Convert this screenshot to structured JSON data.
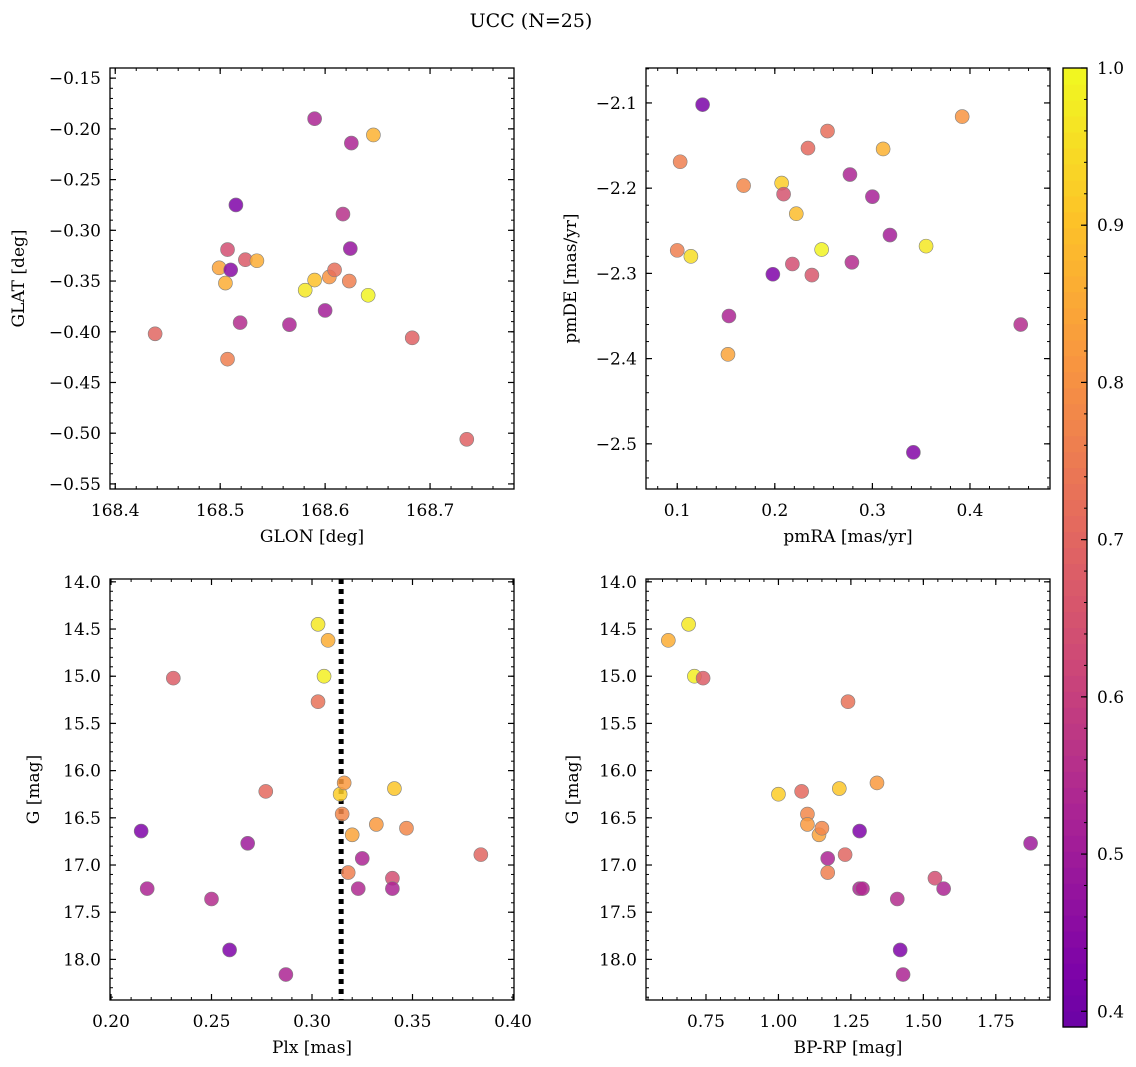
{
  "figure": {
    "title": "UCC (N=25)"
  },
  "colorbar": {
    "min": 0.39,
    "max": 1.0,
    "ticks": [
      0.4,
      0.5,
      0.6,
      0.7,
      0.8,
      0.9,
      1.0
    ],
    "tick_labels": [
      "0.4",
      "0.5",
      "0.6",
      "0.7",
      "0.8",
      "0.9",
      "1.0"
    ],
    "colormap": "plasma"
  },
  "chart_data": [
    {
      "type": "scatter",
      "xlabel": "GLON [deg]",
      "ylabel": "GLAT [deg]",
      "xlim": [
        168.395,
        168.78
      ],
      "ylim": [
        -0.555,
        -0.14
      ],
      "y_inverted": false,
      "xticks": [
        168.4,
        168.5,
        168.6,
        168.7
      ],
      "xtick_labels": [
        "168.4",
        "168.5",
        "168.6",
        "168.7"
      ],
      "yticks": [
        -0.55,
        -0.5,
        -0.45,
        -0.4,
        -0.35,
        -0.3,
        -0.25,
        -0.2,
        -0.15
      ],
      "ytick_labels": [
        "−0.55",
        "−0.50",
        "−0.45",
        "−0.40",
        "−0.35",
        "−0.30",
        "−0.25",
        "−0.20",
        "−0.15"
      ],
      "x": [
        168.438,
        168.499,
        168.505,
        168.507,
        168.507,
        168.51,
        168.515,
        168.519,
        168.524,
        168.535,
        168.566,
        168.581,
        168.59,
        168.59,
        168.6,
        168.604,
        168.609,
        168.617,
        168.623,
        168.624,
        168.625,
        168.641,
        168.646,
        168.683,
        168.735
      ],
      "y": [
        -0.402,
        -0.337,
        -0.352,
        -0.427,
        -0.319,
        -0.339,
        -0.275,
        -0.391,
        -0.329,
        -0.33,
        -0.393,
        -0.359,
        -0.349,
        -0.19,
        -0.379,
        -0.346,
        -0.339,
        -0.284,
        -0.35,
        -0.318,
        -0.214,
        -0.364,
        -0.206,
        -0.406,
        -0.506
      ],
      "c": [
        0.7,
        0.84,
        0.86,
        0.76,
        0.64,
        0.45,
        0.43,
        0.55,
        0.67,
        0.86,
        0.53,
        0.97,
        0.9,
        0.53,
        0.51,
        0.81,
        0.72,
        0.56,
        0.76,
        0.48,
        0.53,
        0.99,
        0.87,
        0.69,
        0.69
      ],
      "vline": null
    },
    {
      "type": "scatter",
      "xlabel": "pmRA [mas/yr]",
      "ylabel": "pmDE [mas/yr]",
      "xlim": [
        0.068,
        0.482
      ],
      "ylim": [
        -2.553,
        -2.059
      ],
      "y_inverted": false,
      "xticks": [
        0.1,
        0.2,
        0.3,
        0.4
      ],
      "xtick_labels": [
        "0.1",
        "0.2",
        "0.3",
        "0.4"
      ],
      "yticks": [
        -2.5,
        -2.4,
        -2.3,
        -2.2,
        -2.1
      ],
      "ytick_labels": [
        "−2.5",
        "−2.4",
        "−2.3",
        "−2.2",
        "−2.1"
      ],
      "x": [
        0.1,
        0.103,
        0.114,
        0.126,
        0.152,
        0.153,
        0.168,
        0.198,
        0.207,
        0.209,
        0.218,
        0.222,
        0.234,
        0.238,
        0.248,
        0.254,
        0.277,
        0.279,
        0.3,
        0.311,
        0.318,
        0.342,
        0.355,
        0.392,
        0.452
      ],
      "y": [
        -2.273,
        -2.169,
        -2.28,
        -2.102,
        -2.395,
        -2.35,
        -2.197,
        -2.301,
        -2.194,
        -2.207,
        -2.289,
        -2.23,
        -2.153,
        -2.302,
        -2.272,
        -2.133,
        -2.184,
        -2.287,
        -2.21,
        -2.154,
        -2.255,
        -2.51,
        -2.268,
        -2.116,
        -2.36
      ],
      "c": [
        0.76,
        0.76,
        0.95,
        0.42,
        0.84,
        0.53,
        0.78,
        0.43,
        0.92,
        0.65,
        0.64,
        0.89,
        0.71,
        0.66,
        0.99,
        0.72,
        0.53,
        0.55,
        0.52,
        0.87,
        0.51,
        0.44,
        0.97,
        0.81,
        0.55
      ],
      "vline": null
    },
    {
      "type": "scatter",
      "xlabel": "Plx [mas]",
      "ylabel": "G [mag]",
      "xlim": [
        0.1995,
        0.4005
      ],
      "ylim": [
        18.43,
        13.97
      ],
      "y_inverted": true,
      "xticks": [
        0.2,
        0.25,
        0.3,
        0.35,
        0.4
      ],
      "xtick_labels": [
        "0.20",
        "0.25",
        "0.30",
        "0.35",
        "0.40"
      ],
      "yticks": [
        14.0,
        14.5,
        15.0,
        15.5,
        16.0,
        16.5,
        17.0,
        17.5,
        18.0
      ],
      "ytick_labels": [
        "14.0",
        "14.5",
        "15.0",
        "15.5",
        "16.0",
        "16.5",
        "17.0",
        "17.5",
        "18.0"
      ],
      "x": [
        0.215,
        0.218,
        0.231,
        0.25,
        0.259,
        0.268,
        0.277,
        0.287,
        0.303,
        0.303,
        0.306,
        0.308,
        0.314,
        0.315,
        0.316,
        0.318,
        0.32,
        0.323,
        0.325,
        0.332,
        0.34,
        0.34,
        0.341,
        0.347,
        0.384
      ],
      "y": [
        16.64,
        17.25,
        15.02,
        17.36,
        17.9,
        16.77,
        16.22,
        18.16,
        14.45,
        15.27,
        15.0,
        14.62,
        16.25,
        16.46,
        16.13,
        17.08,
        16.68,
        17.25,
        16.93,
        16.57,
        17.14,
        17.25,
        16.19,
        16.61,
        16.89
      ],
      "c": [
        0.43,
        0.53,
        0.68,
        0.55,
        0.43,
        0.5,
        0.71,
        0.53,
        0.97,
        0.73,
        0.98,
        0.86,
        0.92,
        0.78,
        0.82,
        0.76,
        0.84,
        0.54,
        0.53,
        0.82,
        0.64,
        0.53,
        0.91,
        0.78,
        0.7
      ],
      "vline": 0.3145
    },
    {
      "type": "scatter",
      "xlabel": "BP-RP [mag]",
      "ylabel": "G [mag]",
      "xlim": [
        0.543,
        1.937
      ],
      "ylim": [
        18.43,
        13.97
      ],
      "y_inverted": true,
      "xticks": [
        0.75,
        1.0,
        1.25,
        1.5,
        1.75
      ],
      "xtick_labels": [
        "0.75",
        "1.00",
        "1.25",
        "1.50",
        "1.75"
      ],
      "yticks": [
        14.0,
        14.5,
        15.0,
        15.5,
        16.0,
        16.5,
        17.0,
        17.5,
        18.0
      ],
      "ytick_labels": [
        "14.0",
        "14.5",
        "15.0",
        "15.5",
        "16.0",
        "16.5",
        "17.0",
        "17.5",
        "18.0"
      ],
      "x": [
        0.62,
        0.69,
        0.71,
        0.74,
        1.0,
        1.08,
        1.1,
        1.1,
        1.14,
        1.15,
        1.17,
        1.17,
        1.21,
        1.23,
        1.24,
        1.28,
        1.28,
        1.29,
        1.34,
        1.41,
        1.42,
        1.43,
        1.54,
        1.57,
        1.87
      ],
      "y": [
        14.62,
        14.45,
        15.0,
        15.02,
        16.25,
        16.22,
        16.46,
        16.57,
        16.68,
        16.61,
        16.93,
        17.08,
        16.19,
        16.89,
        15.27,
        16.64,
        17.25,
        17.25,
        16.13,
        17.36,
        17.9,
        18.16,
        17.14,
        17.25,
        16.77
      ],
      "c": [
        0.86,
        0.97,
        0.98,
        0.68,
        0.92,
        0.71,
        0.78,
        0.82,
        0.84,
        0.78,
        0.53,
        0.76,
        0.91,
        0.7,
        0.73,
        0.43,
        0.53,
        0.54,
        0.82,
        0.55,
        0.43,
        0.53,
        0.64,
        0.53,
        0.5
      ],
      "vline": null
    }
  ]
}
